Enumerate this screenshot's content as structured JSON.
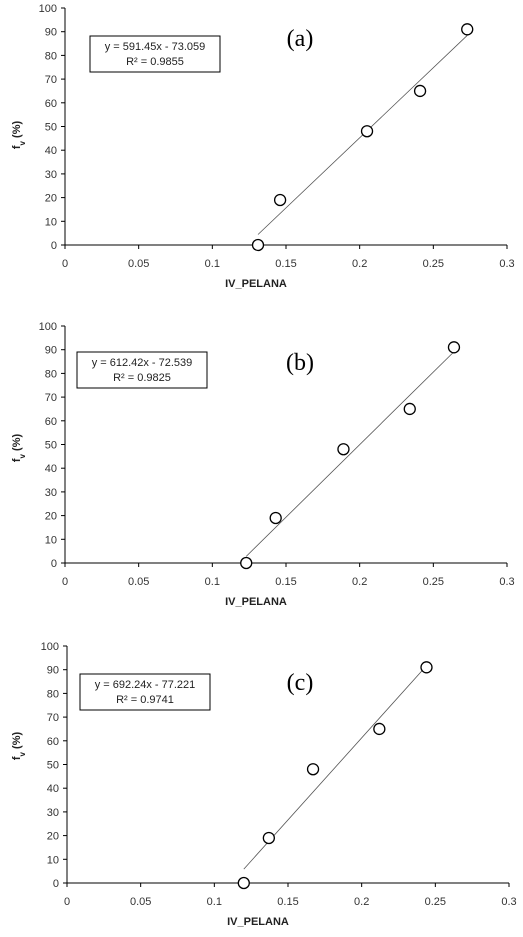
{
  "chart_data": [
    {
      "type": "scatter",
      "panel_label": "(a)",
      "xlabel": "IV_PELANA",
      "ylabel_main": "f",
      "ylabel_sub": "v",
      "ylabel_rest": " (%)",
      "xlim": [
        0,
        0.3
      ],
      "ylim": [
        0,
        100
      ],
      "xticks": [
        "0",
        "0.05",
        "0.1",
        "0.15",
        "0.2",
        "0.25",
        "0.3"
      ],
      "yticks": [
        "0",
        "10",
        "20",
        "30",
        "40",
        "50",
        "60",
        "70",
        "80",
        "90",
        "100"
      ],
      "x": [
        0.131,
        0.146,
        0.205,
        0.241,
        0.273
      ],
      "y": [
        0,
        19,
        48,
        65,
        91
      ],
      "trendline": {
        "slope": 591.45,
        "intercept": -73.059,
        "x_start": 0.131,
        "x_end": 0.273
      },
      "equation": "y = 591.45x - 73.059",
      "r2": "R² = 0.9855"
    },
    {
      "type": "scatter",
      "panel_label": "(b)",
      "xlabel": "IV_PELANA",
      "ylabel_main": "f",
      "ylabel_sub": "v",
      "ylabel_rest": " (%)",
      "xlim": [
        0,
        0.3
      ],
      "ylim": [
        0,
        100
      ],
      "xticks": [
        "0",
        "0.05",
        "0.1",
        "0.15",
        "0.2",
        "0.25",
        "0.3"
      ],
      "yticks": [
        "0",
        "10",
        "20",
        "30",
        "40",
        "50",
        "60",
        "70",
        "80",
        "90",
        "100"
      ],
      "x": [
        0.123,
        0.143,
        0.189,
        0.234,
        0.264
      ],
      "y": [
        0,
        19,
        48,
        65,
        91
      ],
      "trendline": {
        "slope": 612.42,
        "intercept": -72.539,
        "x_start": 0.123,
        "x_end": 0.264
      },
      "equation": "y = 612.42x - 72.539",
      "r2": "R² = 0.9825"
    },
    {
      "type": "scatter",
      "panel_label": "(c)",
      "xlabel": "IV_PELANA",
      "ylabel_main": "f",
      "ylabel_sub": "v",
      "ylabel_rest": " (%)",
      "xlim": [
        0,
        0.3
      ],
      "ylim": [
        0,
        100
      ],
      "xticks": [
        "0",
        "0.05",
        "0.1",
        "0.15",
        "0.2",
        "0.25",
        "0.3"
      ],
      "yticks": [
        "0",
        "10",
        "20",
        "30",
        "40",
        "50",
        "60",
        "70",
        "80",
        "90",
        "100"
      ],
      "x": [
        0.12,
        0.137,
        0.167,
        0.212,
        0.244
      ],
      "y": [
        0,
        19,
        48,
        65,
        91
      ],
      "trendline": {
        "slope": 692.24,
        "intercept": -77.221,
        "x_start": 0.12,
        "x_end": 0.244
      },
      "equation": "y = 692.24x - 77.221",
      "r2": "R² = 0.9741"
    }
  ],
  "colors": {
    "marker_stroke": "#000000",
    "axis": "#000000",
    "trend": "#555555"
  }
}
